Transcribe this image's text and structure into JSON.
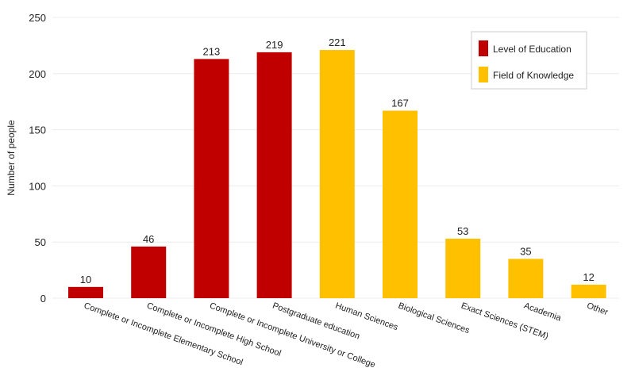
{
  "chart_data": {
    "type": "bar",
    "title": "",
    "xlabel": "",
    "ylabel": "Number of people",
    "ylim": [
      0,
      250
    ],
    "yticks": [
      0,
      50,
      100,
      150,
      200,
      250
    ],
    "grid": true,
    "legend_position": "top-right",
    "categories": [
      "Complete or Incomplete Elementary School",
      "Complete or Incomplete High School",
      "Complete or Incomplete University or College",
      "Postgraduate education",
      "Human Sciences",
      "Biological Sciences",
      "Exact Sciences (STEM)",
      "Academia",
      "Other"
    ],
    "values": [
      10,
      46,
      213,
      219,
      221,
      167,
      53,
      35,
      12
    ],
    "groups": [
      "Level of Education",
      "Level of Education",
      "Level of Education",
      "Level of Education",
      "Field of Knowledge",
      "Field of Knowledge",
      "Field of Knowledge",
      "Field of Knowledge",
      "Field of Knowledge"
    ],
    "legend": [
      {
        "name": "Level of Education",
        "color": "#C00000"
      },
      {
        "name": "Field of Knowledge",
        "color": "#FFC000"
      }
    ]
  }
}
